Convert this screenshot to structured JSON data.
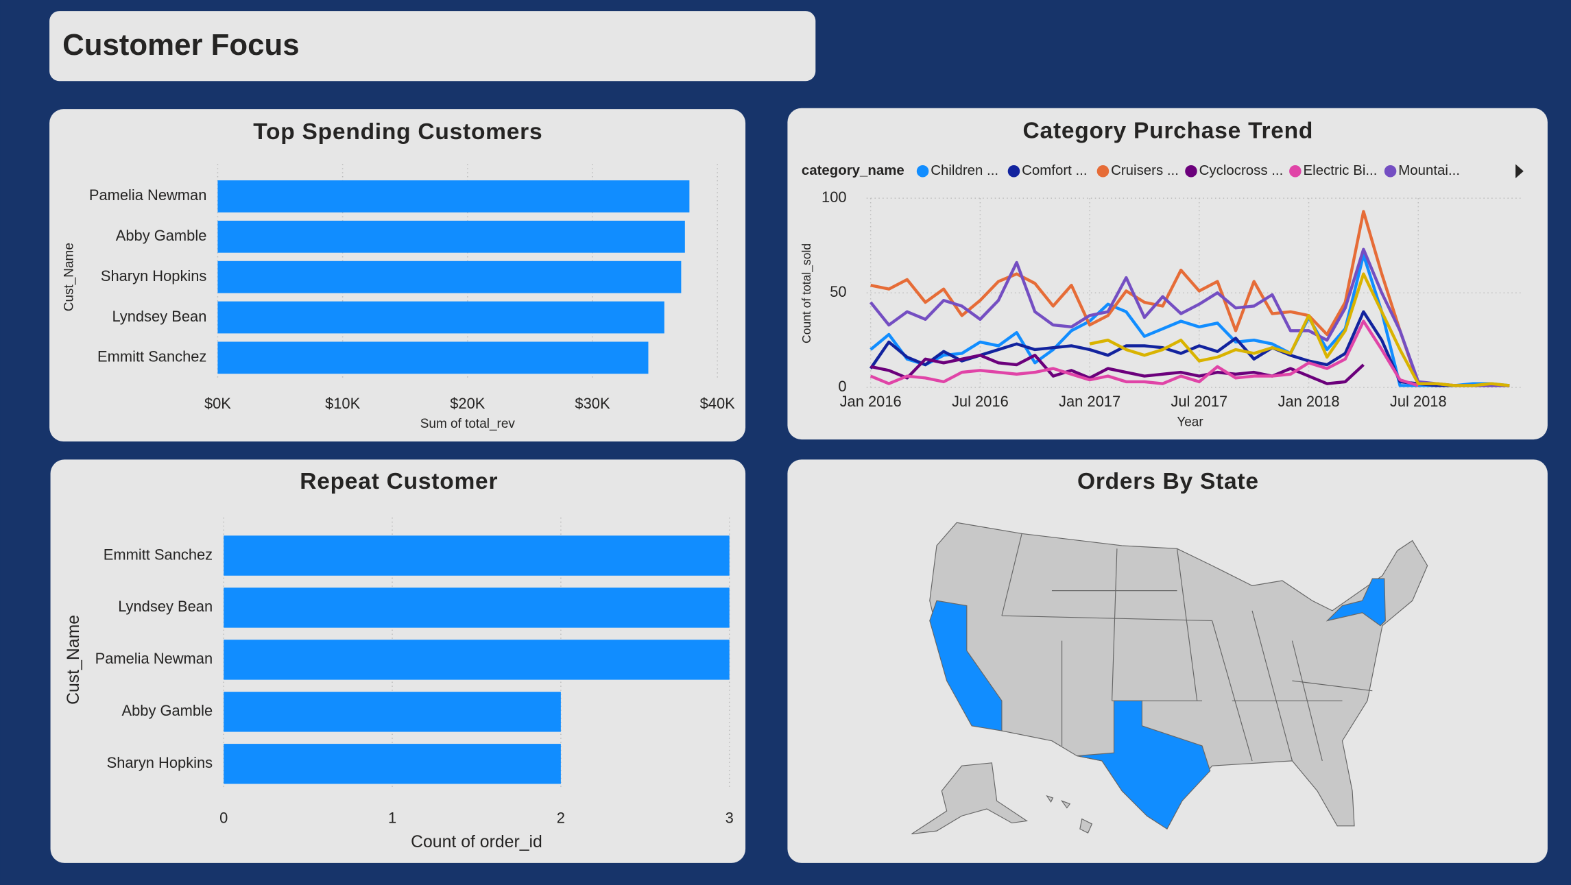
{
  "header": {
    "title": "Customer Focus"
  },
  "chart_data": [
    {
      "type": "bar",
      "orientation": "horizontal",
      "title": "Top Spending Customers",
      "categories": [
        "Pamelia Newman",
        "Abby Gamble",
        "Sharyn Hopkins",
        "Lyndsey Bean",
        "Emmitt Sanchez"
      ],
      "values": [
        37760,
        37400,
        37100,
        35750,
        34470
      ],
      "color": "#118dff",
      "xlim": [
        0,
        40000
      ],
      "xticks": [
        {
          "value": 0,
          "label": "$0K"
        },
        {
          "value": 10000,
          "label": "$10K"
        },
        {
          "value": 20000,
          "label": "$20K"
        },
        {
          "value": 30000,
          "label": "$30K"
        },
        {
          "value": 40000,
          "label": "$40K"
        }
      ],
      "xlabel": "Sum of total_rev",
      "ylabel": "Cust_Name",
      "grid": true
    },
    {
      "type": "line",
      "title": "Category Purchase Trend",
      "legend_title": "category_name",
      "x": [
        "2016-01",
        "2016-02",
        "2016-03",
        "2016-04",
        "2016-05",
        "2016-06",
        "2016-07",
        "2016-08",
        "2016-09",
        "2016-10",
        "2016-11",
        "2016-12",
        "2017-01",
        "2017-02",
        "2017-03",
        "2017-04",
        "2017-05",
        "2017-06",
        "2017-07",
        "2017-08",
        "2017-09",
        "2017-10",
        "2017-11",
        "2017-12",
        "2018-01",
        "2018-02",
        "2018-03",
        "2018-04",
        "2018-05",
        "2018-06",
        "2018-07",
        "2018-08",
        "2018-09",
        "2018-10",
        "2018-11",
        "2018-12"
      ],
      "xlim": [
        "2016-01",
        "2018-12"
      ],
      "xticks": [
        {
          "value": "2016-01",
          "label": "Jan 2016"
        },
        {
          "value": "2016-07",
          "label": "Jul 2016"
        },
        {
          "value": "2017-01",
          "label": "Jan 2017"
        },
        {
          "value": "2017-07",
          "label": "Jul 2017"
        },
        {
          "value": "2018-01",
          "label": "Jan 2018"
        },
        {
          "value": "2018-07",
          "label": "Jul 2018"
        }
      ],
      "ylim": [
        0,
        100
      ],
      "yticks": [
        0,
        50,
        100
      ],
      "xlabel": "Year",
      "ylabel": "Count of total_sold",
      "grid": true,
      "series": [
        {
          "name": "Children ...",
          "color": "#118dff",
          "values": [
            20,
            28,
            15,
            12,
            17,
            18,
            24,
            22,
            29,
            13,
            20,
            30,
            35,
            44,
            40,
            27,
            31,
            35,
            32,
            34,
            24,
            25,
            23,
            18,
            37,
            20,
            31,
            70,
            40,
            1,
            1,
            1,
            1,
            2,
            2,
            1
          ]
        },
        {
          "name": "Comfort ...",
          "color": "#12239e",
          "values": [
            10,
            24,
            16,
            12,
            19,
            14,
            17,
            20,
            23,
            20,
            21,
            22,
            20,
            17,
            22,
            22,
            21,
            18,
            22,
            19,
            26,
            15,
            21,
            17,
            14,
            12,
            18,
            40,
            25,
            3,
            2,
            1,
            1,
            1,
            1,
            1
          ]
        },
        {
          "name": "Cruisers ...",
          "color": "#e66c37",
          "values": [
            54,
            52,
            57,
            45,
            52,
            38,
            46,
            56,
            60,
            55,
            43,
            54,
            33,
            38,
            51,
            45,
            43,
            62,
            51,
            56,
            30,
            56,
            39,
            40,
            38,
            28,
            45,
            93,
            60,
            30,
            2,
            2,
            1,
            1,
            1,
            1
          ]
        },
        {
          "name": "Cyclocross ...",
          "color": "#6b007b",
          "values": [
            11,
            9,
            5,
            15,
            13,
            15,
            17,
            13,
            12,
            17,
            6,
            9,
            5,
            10,
            8,
            6,
            7,
            8,
            6,
            8,
            7,
            8,
            6,
            10,
            6,
            2,
            3,
            12,
            null,
            null,
            null,
            null,
            null,
            null,
            null,
            null
          ]
        },
        {
          "name": "Electric Bi...",
          "color": "#e044a7",
          "values": [
            6,
            2,
            6,
            5,
            3,
            8,
            9,
            8,
            7,
            8,
            10,
            7,
            4,
            6,
            3,
            3,
            2,
            6,
            3,
            11,
            5,
            6,
            6,
            7,
            13,
            10,
            15,
            35,
            20,
            4,
            1,
            null,
            null,
            null,
            null,
            null
          ]
        },
        {
          "name": "Mountai...",
          "color": "#744ec2",
          "values": [
            45,
            33,
            40,
            36,
            46,
            43,
            36,
            46,
            66,
            40,
            33,
            32,
            38,
            40,
            58,
            37,
            48,
            39,
            44,
            50,
            42,
            43,
            49,
            30,
            30,
            25,
            42,
            73,
            50,
            30,
            3,
            2,
            1,
            1,
            1,
            1
          ]
        },
        {
          "color": "#d9b300",
          "values": [
            null,
            null,
            null,
            null,
            null,
            null,
            null,
            null,
            null,
            null,
            null,
            null,
            23,
            25,
            20,
            17,
            20,
            25,
            14,
            16,
            20,
            18,
            21,
            18,
            38,
            16,
            30,
            60,
            40,
            20,
            2,
            2,
            1,
            1,
            2,
            1
          ]
        }
      ]
    },
    {
      "type": "bar",
      "orientation": "horizontal",
      "title": "Repeat Customer",
      "categories": [
        "Emmitt Sanchez",
        "Lyndsey Bean",
        "Pamelia Newman",
        "Abby Gamble",
        "Sharyn Hopkins"
      ],
      "values": [
        3,
        3,
        3,
        2,
        2
      ],
      "color": "#118dff",
      "xlim": [
        0,
        3
      ],
      "xticks": [
        0,
        1,
        2,
        3
      ],
      "xlabel": "Count of order_id",
      "ylabel": "Cust_Name",
      "grid": true
    },
    {
      "type": "map",
      "title": "Orders By State"
    }
  ]
}
